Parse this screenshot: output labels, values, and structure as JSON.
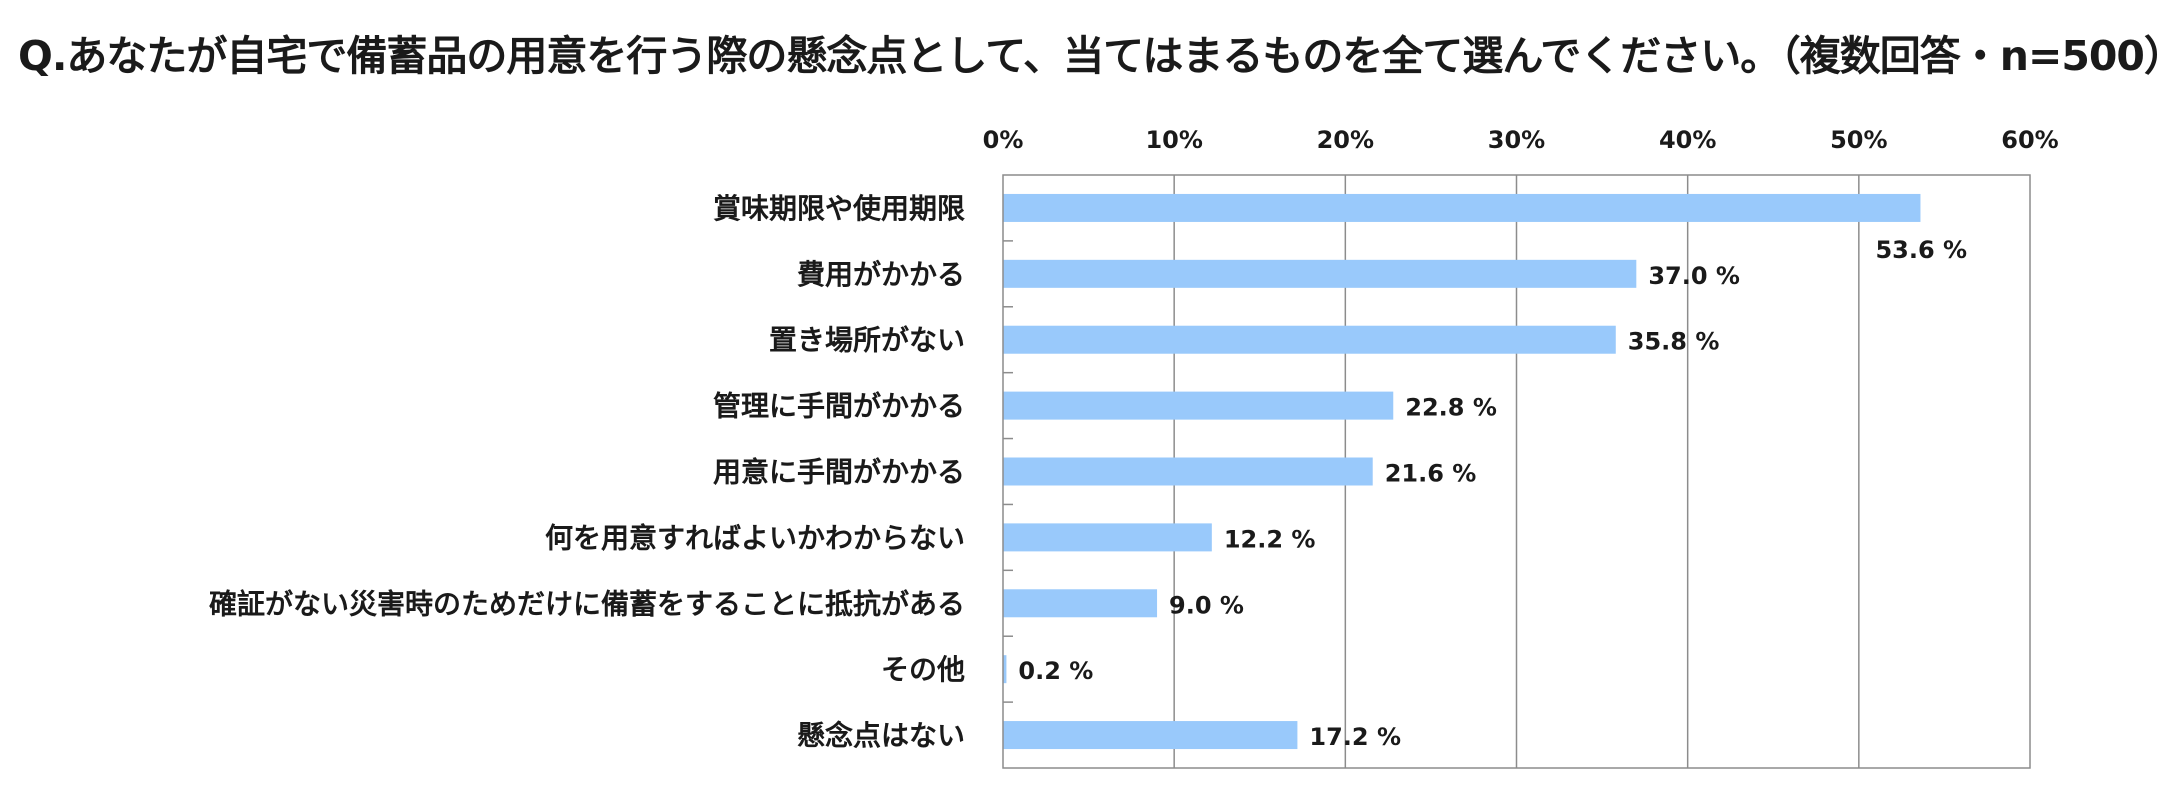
{
  "chart_data": {
    "type": "bar",
    "orientation": "horizontal",
    "title": "Q.あなたが自宅で備蓄品の用意を行う際の懸念点として、当てはまるものを全て選んでください。（複数回答・n=500）",
    "categories": [
      "賞味期限や使用期限",
      "費用がかかる",
      "置き場所がない",
      "管理に手間がかかる",
      "用意に手間がかかる",
      "何を用意すればよいかわからない",
      "確証がない災害時のためだけに備蓄をすることに抵抗がある",
      "その他",
      "懸念点はない"
    ],
    "values": [
      53.6,
      37.0,
      35.8,
      22.8,
      21.6,
      12.2,
      9.0,
      0.2,
      17.2
    ],
    "value_labels": [
      "53.6 %",
      "37.0 %",
      "35.8 %",
      "22.8 %",
      "21.6 %",
      "12.2 %",
      "9.0 %",
      "0.2 %",
      "17.2 %"
    ],
    "xlim": [
      0,
      60
    ],
    "xticks": [
      0,
      10,
      20,
      30,
      40,
      50,
      60
    ],
    "xtick_labels": [
      "0%",
      "10%",
      "20%",
      "30%",
      "40%",
      "50%",
      "60%"
    ],
    "xaxis_position": "top",
    "grid": true,
    "legend": "none",
    "colors": {
      "bar": "#99c9fb",
      "grid": "#8c8c8c",
      "frame": "#8c8c8c",
      "text": "#1a1a1a"
    }
  }
}
